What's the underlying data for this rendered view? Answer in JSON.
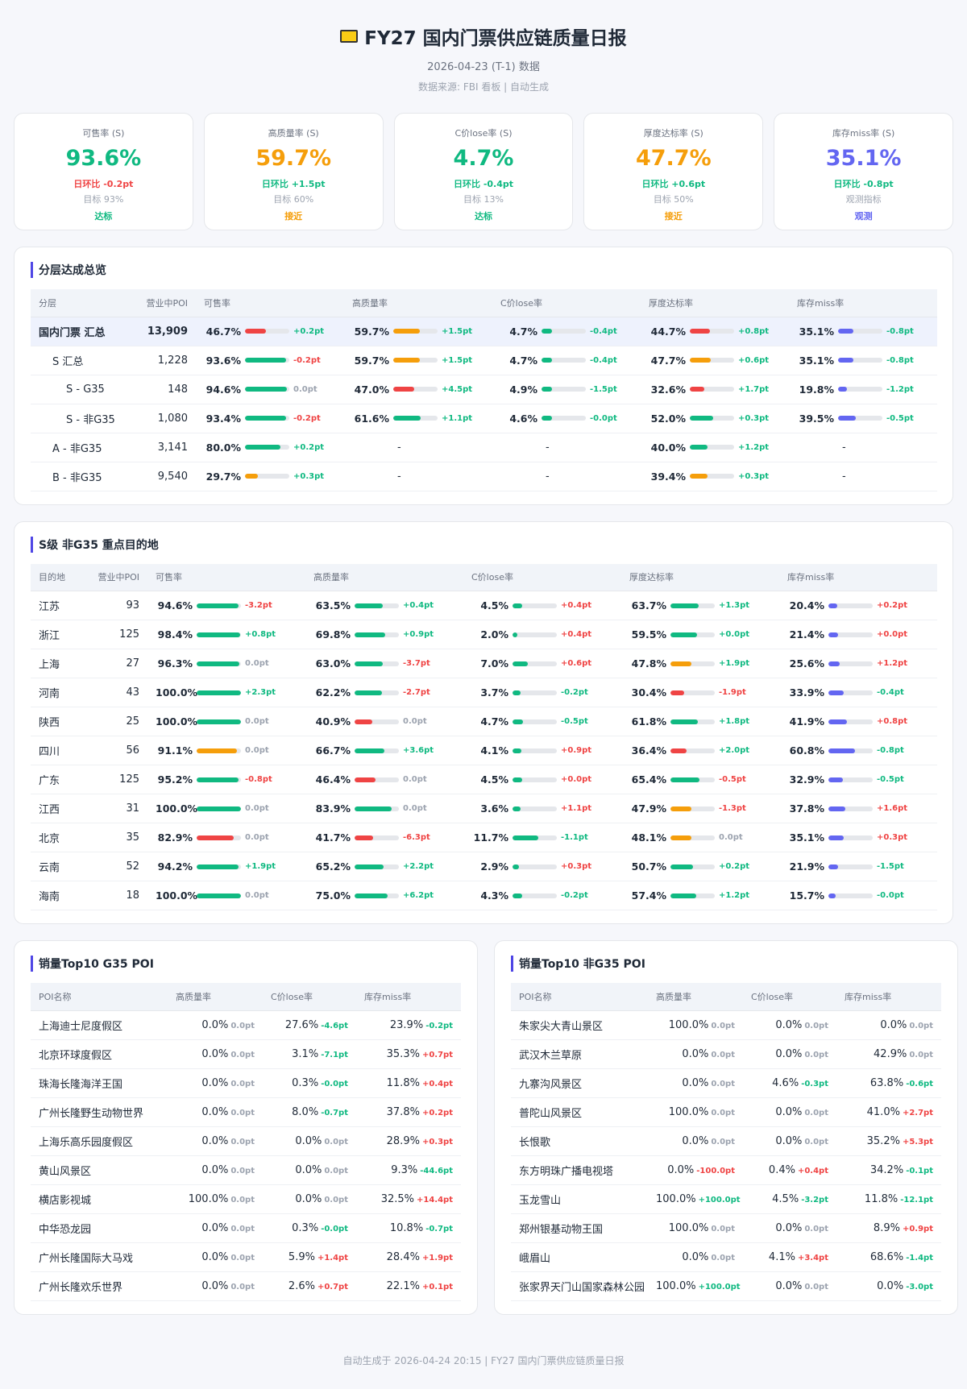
{
  "header": {
    "title": "FY27 国内门票供应链质量日报",
    "subtitle": "2026-04-23 (T-1) 数据",
    "source": "数据来源: FBI 看板 | 自动生成"
  },
  "delta_colors": {
    "good": "#10b981",
    "bad": "#ef4444",
    "flat": "#9ca3af"
  },
  "bar_colors": {
    "g": "#10b981",
    "o": "#f59e0b",
    "r": "#ef4444",
    "b": "#6366f1"
  },
  "kpis": [
    {
      "label": "可售率 (S)",
      "value": "93.6%",
      "delta": "日环比 -0.2pt",
      "target": "目标 93%",
      "status": "达标",
      "color": "#10b981",
      "lower_better": false
    },
    {
      "label": "高质量率 (S)",
      "value": "59.7%",
      "delta": "日环比 +1.5pt",
      "target": "目标 60%",
      "status": "接近",
      "color": "#f59e0b",
      "lower_better": false
    },
    {
      "label": "C价lose率 (S)",
      "value": "4.7%",
      "delta": "日环比 -0.4pt",
      "target": "目标 13%",
      "status": "达标",
      "color": "#10b981",
      "lower_better": true
    },
    {
      "label": "厚度达标率 (S)",
      "value": "47.7%",
      "delta": "日环比 +0.6pt",
      "target": "目标 50%",
      "status": "接近",
      "color": "#f59e0b",
      "lower_better": false
    },
    {
      "label": "库存miss率 (S)",
      "value": "35.1%",
      "delta": "日环比 -0.8pt",
      "target": "观测指标",
      "status": "观测",
      "color": "#6366f1",
      "lower_better": true
    }
  ],
  "tier_table": {
    "title": "分层达成总览",
    "columns": [
      "分层",
      "营业中POI",
      "可售率",
      "高质量率",
      "C价lose率",
      "厚度达标率",
      "库存miss率"
    ],
    "bar_max": [
      100,
      100,
      20,
      100,
      100
    ],
    "lower_better": [
      false,
      false,
      true,
      false,
      true
    ],
    "rows": [
      {
        "name": "国内门票 汇总",
        "poi": "13,909",
        "cells": [
          [
            "46.7%",
            "+0.2pt",
            "r"
          ],
          [
            "59.7%",
            "+1.5pt",
            "o"
          ],
          [
            "4.7%",
            "-0.4pt",
            "g"
          ],
          [
            "44.7%",
            "+0.8pt",
            "r"
          ],
          [
            "35.1%",
            "-0.8pt",
            "b"
          ]
        ]
      },
      {
        "name": "S 汇总",
        "poi": "1,228",
        "cells": [
          [
            "93.6%",
            "-0.2pt",
            "g"
          ],
          [
            "59.7%",
            "+1.5pt",
            "o"
          ],
          [
            "4.7%",
            "-0.4pt",
            "g"
          ],
          [
            "47.7%",
            "+0.6pt",
            "o"
          ],
          [
            "35.1%",
            "-0.8pt",
            "b"
          ]
        ]
      },
      {
        "name": "S - G35",
        "poi": "148",
        "cells": [
          [
            "94.6%",
            "0.0pt",
            "g"
          ],
          [
            "47.0%",
            "+4.5pt",
            "r"
          ],
          [
            "4.9%",
            "-1.5pt",
            "g"
          ],
          [
            "32.6%",
            "+1.7pt",
            "r"
          ],
          [
            "19.8%",
            "-1.2pt",
            "b"
          ]
        ]
      },
      {
        "name": "S - 非G35",
        "poi": "1,080",
        "cells": [
          [
            "93.4%",
            "-0.2pt",
            "g"
          ],
          [
            "61.6%",
            "+1.1pt",
            "g"
          ],
          [
            "4.6%",
            "-0.0pt",
            "g"
          ],
          [
            "52.0%",
            "+0.3pt",
            "g"
          ],
          [
            "39.5%",
            "-0.5pt",
            "b"
          ]
        ]
      },
      {
        "name": "A - 非G35",
        "poi": "3,141",
        "cells": [
          [
            "80.0%",
            "+0.2pt",
            "g"
          ],
          [
            "-"
          ],
          [
            "-"
          ],
          [
            "40.0%",
            "+1.2pt",
            "g"
          ],
          [
            "-"
          ]
        ]
      },
      {
        "name": "B - 非G35",
        "poi": "9,540",
        "cells": [
          [
            "29.7%",
            "+0.3pt",
            "o"
          ],
          [
            "-"
          ],
          [
            "-"
          ],
          [
            "39.4%",
            "+0.3pt",
            "o"
          ],
          [
            "-"
          ]
        ]
      }
    ]
  },
  "dest_table": {
    "title": "S级 非G35 重点目的地",
    "columns": [
      "目的地",
      "营业中POI",
      "可售率",
      "高质量率",
      "C价lose率",
      "厚度达标率",
      "库存miss率"
    ],
    "bar_max": [
      100,
      100,
      20,
      100,
      100
    ],
    "lower_better": [
      false,
      false,
      true,
      false,
      true
    ],
    "rows": [
      {
        "name": "江苏",
        "poi": "93",
        "cells": [
          [
            "94.6%",
            "-3.2pt",
            "g"
          ],
          [
            "63.5%",
            "+0.4pt",
            "g"
          ],
          [
            "4.5%",
            "+0.4pt",
            "g"
          ],
          [
            "63.7%",
            "+1.3pt",
            "g"
          ],
          [
            "20.4%",
            "+0.2pt",
            "b"
          ]
        ]
      },
      {
        "name": "浙江",
        "poi": "125",
        "cells": [
          [
            "98.4%",
            "+0.8pt",
            "g"
          ],
          [
            "69.8%",
            "+0.9pt",
            "g"
          ],
          [
            "2.0%",
            "+0.4pt",
            "g"
          ],
          [
            "59.5%",
            "+0.0pt",
            "g"
          ],
          [
            "21.4%",
            "+0.0pt",
            "b"
          ]
        ]
      },
      {
        "name": "上海",
        "poi": "27",
        "cells": [
          [
            "96.3%",
            "0.0pt",
            "g"
          ],
          [
            "63.0%",
            "-3.7pt",
            "g"
          ],
          [
            "7.0%",
            "+0.6pt",
            "g"
          ],
          [
            "47.8%",
            "+1.9pt",
            "o"
          ],
          [
            "25.6%",
            "+1.2pt",
            "b"
          ]
        ]
      },
      {
        "name": "河南",
        "poi": "43",
        "cells": [
          [
            "100.0%",
            "+2.3pt",
            "g"
          ],
          [
            "62.2%",
            "-2.7pt",
            "g"
          ],
          [
            "3.7%",
            "-0.2pt",
            "g"
          ],
          [
            "30.4%",
            "-1.9pt",
            "r"
          ],
          [
            "33.9%",
            "-0.4pt",
            "b"
          ]
        ]
      },
      {
        "name": "陕西",
        "poi": "25",
        "cells": [
          [
            "100.0%",
            "0.0pt",
            "g"
          ],
          [
            "40.9%",
            "0.0pt",
            "r"
          ],
          [
            "4.7%",
            "-0.5pt",
            "g"
          ],
          [
            "61.8%",
            "+1.8pt",
            "g"
          ],
          [
            "41.9%",
            "+0.8pt",
            "b"
          ]
        ]
      },
      {
        "name": "四川",
        "poi": "56",
        "cells": [
          [
            "91.1%",
            "0.0pt",
            "o"
          ],
          [
            "66.7%",
            "+3.6pt",
            "g"
          ],
          [
            "4.1%",
            "+0.9pt",
            "g"
          ],
          [
            "36.4%",
            "+2.0pt",
            "r"
          ],
          [
            "60.8%",
            "-0.8pt",
            "b"
          ]
        ]
      },
      {
        "name": "广东",
        "poi": "125",
        "cells": [
          [
            "95.2%",
            "-0.8pt",
            "g"
          ],
          [
            "46.4%",
            "0.0pt",
            "r"
          ],
          [
            "4.5%",
            "+0.0pt",
            "g"
          ],
          [
            "65.4%",
            "-0.5pt",
            "g"
          ],
          [
            "32.9%",
            "-0.5pt",
            "b"
          ]
        ]
      },
      {
        "name": "江西",
        "poi": "31",
        "cells": [
          [
            "100.0%",
            "0.0pt",
            "g"
          ],
          [
            "83.9%",
            "0.0pt",
            "g"
          ],
          [
            "3.6%",
            "+1.1pt",
            "g"
          ],
          [
            "47.9%",
            "-1.3pt",
            "o"
          ],
          [
            "37.8%",
            "+1.6pt",
            "b"
          ]
        ]
      },
      {
        "name": "北京",
        "poi": "35",
        "cells": [
          [
            "82.9%",
            "0.0pt",
            "r"
          ],
          [
            "41.7%",
            "-6.3pt",
            "r"
          ],
          [
            "11.7%",
            "-1.1pt",
            "g"
          ],
          [
            "48.1%",
            "0.0pt",
            "o"
          ],
          [
            "35.1%",
            "+0.3pt",
            "b"
          ]
        ]
      },
      {
        "name": "云南",
        "poi": "52",
        "cells": [
          [
            "94.2%",
            "+1.9pt",
            "g"
          ],
          [
            "65.2%",
            "+2.2pt",
            "g"
          ],
          [
            "2.9%",
            "+0.3pt",
            "g"
          ],
          [
            "50.7%",
            "+0.2pt",
            "g"
          ],
          [
            "21.9%",
            "-1.5pt",
            "b"
          ]
        ]
      },
      {
        "name": "海南",
        "poi": "18",
        "cells": [
          [
            "100.0%",
            "0.0pt",
            "g"
          ],
          [
            "75.0%",
            "+6.2pt",
            "g"
          ],
          [
            "4.3%",
            "-0.2pt",
            "g"
          ],
          [
            "57.4%",
            "+1.2pt",
            "g"
          ],
          [
            "15.7%",
            "-0.0pt",
            "b"
          ]
        ]
      }
    ]
  },
  "top_g35": {
    "title": "销量Top10 G35 POI",
    "columns": [
      "POI名称",
      "高质量率",
      "C价lose率",
      "库存miss率"
    ],
    "lower_better": [
      false,
      true,
      true
    ],
    "rows": [
      {
        "name": "上海迪士尼度假区",
        "cells": [
          [
            "0.0%",
            "0.0pt"
          ],
          [
            "27.6%",
            "-4.6pt"
          ],
          [
            "23.9%",
            "-0.2pt"
          ]
        ]
      },
      {
        "name": "北京环球度假区",
        "cells": [
          [
            "0.0%",
            "0.0pt"
          ],
          [
            "3.1%",
            "-7.1pt"
          ],
          [
            "35.3%",
            "+0.7pt"
          ]
        ]
      },
      {
        "name": "珠海长隆海洋王国",
        "cells": [
          [
            "0.0%",
            "0.0pt"
          ],
          [
            "0.3%",
            "-0.0pt"
          ],
          [
            "11.8%",
            "+0.4pt"
          ]
        ]
      },
      {
        "name": "广州长隆野生动物世界",
        "cells": [
          [
            "0.0%",
            "0.0pt"
          ],
          [
            "8.0%",
            "-0.7pt"
          ],
          [
            "37.8%",
            "+0.2pt"
          ]
        ]
      },
      {
        "name": "上海乐高乐园度假区",
        "cells": [
          [
            "0.0%",
            "0.0pt"
          ],
          [
            "0.0%",
            "0.0pt"
          ],
          [
            "28.9%",
            "+0.3pt"
          ]
        ]
      },
      {
        "name": "黄山风景区",
        "cells": [
          [
            "0.0%",
            "0.0pt"
          ],
          [
            "0.0%",
            "0.0pt"
          ],
          [
            "9.3%",
            "-44.6pt"
          ]
        ]
      },
      {
        "name": "横店影视城",
        "cells": [
          [
            "100.0%",
            "0.0pt"
          ],
          [
            "0.0%",
            "0.0pt"
          ],
          [
            "32.5%",
            "+14.4pt"
          ]
        ]
      },
      {
        "name": "中华恐龙园",
        "cells": [
          [
            "0.0%",
            "0.0pt"
          ],
          [
            "0.3%",
            "-0.0pt"
          ],
          [
            "10.8%",
            "-0.7pt"
          ]
        ]
      },
      {
        "name": "广州长隆国际大马戏",
        "cells": [
          [
            "0.0%",
            "0.0pt"
          ],
          [
            "5.9%",
            "+1.4pt"
          ],
          [
            "28.4%",
            "+1.9pt"
          ]
        ]
      },
      {
        "name": "广州长隆欢乐世界",
        "cells": [
          [
            "0.0%",
            "0.0pt"
          ],
          [
            "2.6%",
            "+0.7pt"
          ],
          [
            "22.1%",
            "+0.1pt"
          ]
        ]
      }
    ]
  },
  "top_non_g35": {
    "title": "销量Top10 非G35 POI",
    "columns": [
      "POI名称",
      "高质量率",
      "C价lose率",
      "库存miss率"
    ],
    "lower_better": [
      false,
      true,
      true
    ],
    "rows": [
      {
        "name": "朱家尖大青山景区",
        "cells": [
          [
            "100.0%",
            "0.0pt"
          ],
          [
            "0.0%",
            "0.0pt"
          ],
          [
            "0.0%",
            "0.0pt"
          ]
        ]
      },
      {
        "name": "武汉木兰草原",
        "cells": [
          [
            "0.0%",
            "0.0pt"
          ],
          [
            "0.0%",
            "0.0pt"
          ],
          [
            "42.9%",
            "0.0pt"
          ]
        ]
      },
      {
        "name": "九寨沟风景区",
        "cells": [
          [
            "0.0%",
            "0.0pt"
          ],
          [
            "4.6%",
            "-0.3pt"
          ],
          [
            "63.8%",
            "-0.6pt"
          ]
        ]
      },
      {
        "name": "普陀山风景区",
        "cells": [
          [
            "100.0%",
            "0.0pt"
          ],
          [
            "0.0%",
            "0.0pt"
          ],
          [
            "41.0%",
            "+2.7pt"
          ]
        ]
      },
      {
        "name": "长恨歌",
        "cells": [
          [
            "0.0%",
            "0.0pt"
          ],
          [
            "0.0%",
            "0.0pt"
          ],
          [
            "35.2%",
            "+5.3pt"
          ]
        ]
      },
      {
        "name": "东方明珠广播电视塔",
        "cells": [
          [
            "0.0%",
            "-100.0pt"
          ],
          [
            "0.4%",
            "+0.4pt"
          ],
          [
            "34.2%",
            "-0.1pt"
          ]
        ]
      },
      {
        "name": "玉龙雪山",
        "cells": [
          [
            "100.0%",
            "+100.0pt"
          ],
          [
            "4.5%",
            "-3.2pt"
          ],
          [
            "11.8%",
            "-12.1pt"
          ]
        ]
      },
      {
        "name": "郑州银基动物王国",
        "cells": [
          [
            "100.0%",
            "0.0pt"
          ],
          [
            "0.0%",
            "0.0pt"
          ],
          [
            "8.9%",
            "+0.9pt"
          ]
        ]
      },
      {
        "name": "峨眉山",
        "cells": [
          [
            "0.0%",
            "0.0pt"
          ],
          [
            "4.1%",
            "+3.4pt"
          ],
          [
            "68.6%",
            "-1.4pt"
          ]
        ]
      },
      {
        "name": "张家界天门山国家森林公园",
        "cells": [
          [
            "100.0%",
            "+100.0pt"
          ],
          [
            "0.0%",
            "0.0pt"
          ],
          [
            "0.0%",
            "-3.0pt"
          ]
        ]
      }
    ]
  },
  "footer": "自动生成于 2026-04-24 20:15 | FY27 国内门票供应链质量日报"
}
